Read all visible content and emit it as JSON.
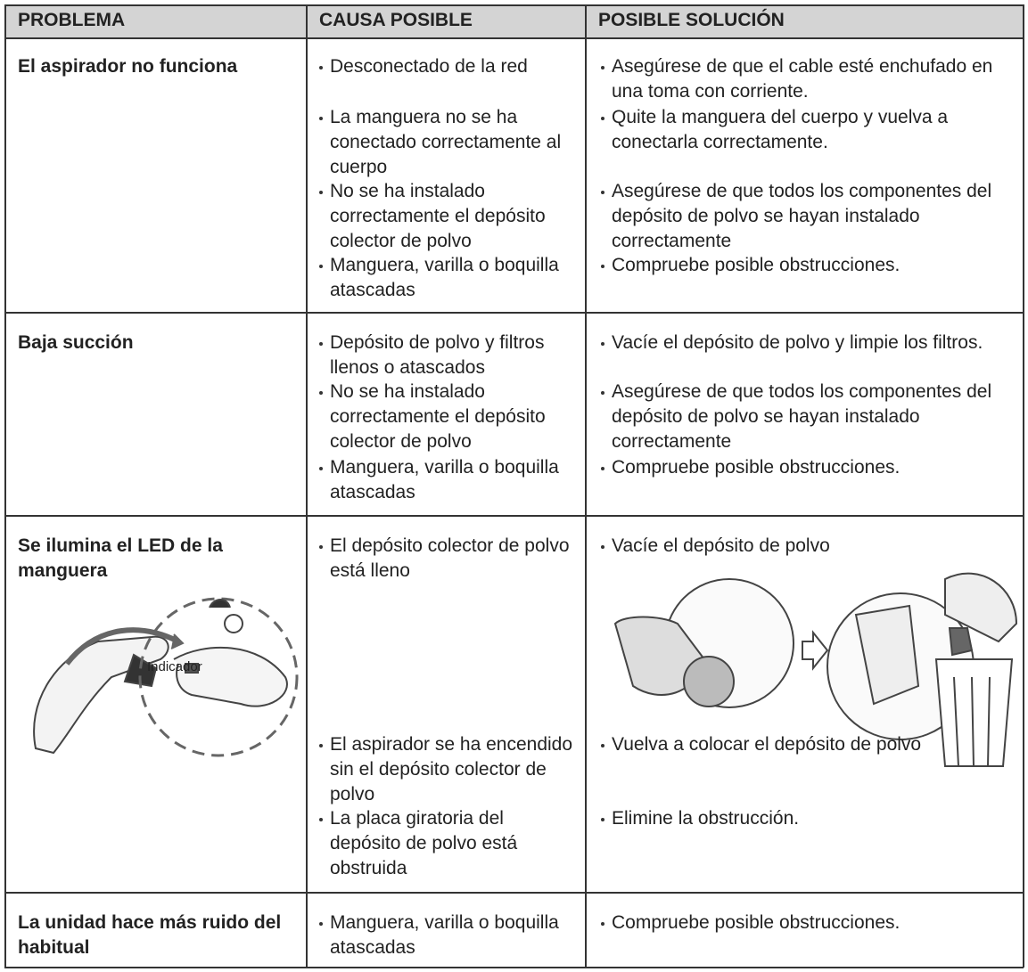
{
  "header": {
    "columns": [
      "PROBLEMA",
      "CAUSA POSIBLE",
      "POSIBLE SOLUCIÓN"
    ]
  },
  "rows": [
    {
      "problem": "El aspirador no funciona",
      "causes": [
        "Desconectado de la red",
        "La manguera no se ha conectado correctamente al cuerpo",
        "No se ha instalado correctamente el depósito colector de polvo",
        "Manguera, varilla o boquilla atascadas"
      ],
      "solutions": [
        "Asegúrese de que el cable esté enchufado en una toma con corriente.",
        "Quite la manguera del cuerpo y vuelva a conectarla correctamente.",
        "Asegúrese de que todos los componentes del depósito de polvo se hayan instalado correctamente",
        "Compruebe posible obstrucciones."
      ]
    },
    {
      "problem": "Baja succión",
      "causes": [
        "Depósito de polvo y filtros llenos o atascados",
        "No se ha instalado correctamente el depósito colector de polvo",
        "Manguera, varilla o boquilla atascadas"
      ],
      "solutions": [
        "Vacíe el depósito de polvo y limpie los filtros.",
        "Asegúrese de que todos los componentes del depósito de polvo se hayan instalado correctamente",
        "Compruebe posible obstrucciones."
      ]
    },
    {
      "problem": "Se ilumina el LED de la manguera",
      "causes": [
        "El depósito colector de polvo está lleno",
        "El aspirador se ha encendido sin el depósito colector de polvo",
        "La placa giratoria del depósito de polvo está obstruida"
      ],
      "solutions": [
        "Vacíe el depósito de polvo",
        "Vuelva a colocar el depósito de polvo",
        "Elimine la obstrucción."
      ]
    },
    {
      "problem": "La unidad hace más ruido del habitual",
      "causes": [
        "Manguera, varilla o boquilla atascadas"
      ],
      "solutions": [
        "Compruebe posible obstrucciones."
      ]
    }
  ],
  "illustration": {
    "label": "Indicador"
  }
}
